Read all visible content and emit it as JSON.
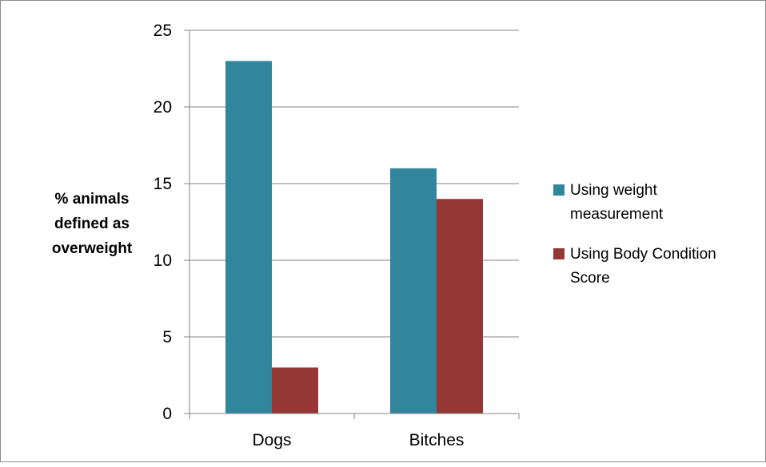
{
  "chart_data": {
    "type": "bar",
    "categories": [
      "Dogs",
      "Bitches"
    ],
    "series": [
      {
        "name": "Using weight measurement",
        "values": [
          23,
          16
        ],
        "color": "#31859C"
      },
      {
        "name": "Using Body Condition Score",
        "values": [
          3,
          14
        ],
        "color": "#953735"
      }
    ],
    "title": "",
    "xlabel": "",
    "ylabel": [
      "% animals",
      "defined as",
      "overweight"
    ],
    "ylim": [
      0,
      25
    ],
    "yticks": [
      0,
      5,
      10,
      15,
      20,
      25
    ],
    "grid": true,
    "legend_position": "right",
    "legend_lines": [
      [
        "Using weight",
        "measurement"
      ],
      [
        "Using Body Condition",
        "Score"
      ]
    ]
  }
}
